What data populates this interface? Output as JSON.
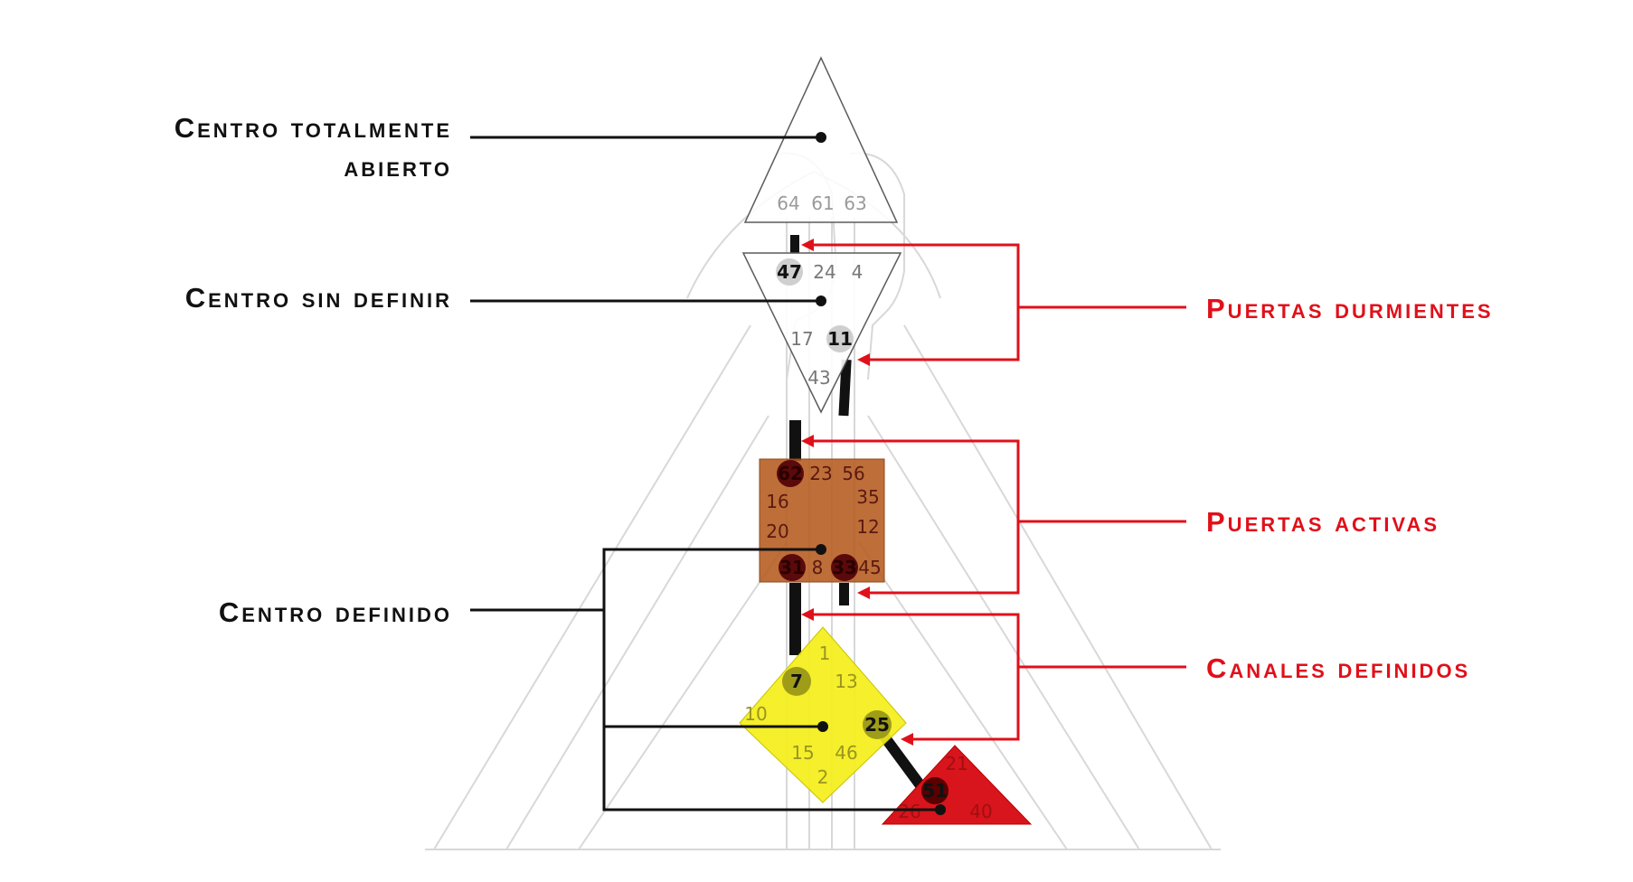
{
  "colors": {
    "black_label": "#111111",
    "red_label": "#e0101a",
    "g_center": "#8a4a1e",
    "g_center_text": "#5a1a10",
    "identity_center": "#f4ee1a",
    "spleen_center": "#d8141c",
    "outline": "#5c5c5c",
    "faint": "#d6d6d6"
  },
  "labels_left": {
    "open_center_line1": "Centro totalmente",
    "open_center_line2": "abierto",
    "undefined_center": "Centro sin definir",
    "defined_center": "Centro definido"
  },
  "labels_right": {
    "dormant_gates": "Puertas durmientes",
    "active_gates": "Puertas activas",
    "defined_channels": "Canales definidos"
  },
  "centers": {
    "head": {
      "gates": [
        "64",
        "61",
        "63"
      ]
    },
    "ajna": {
      "gates": [
        "47",
        "24",
        "4",
        "17",
        "11",
        "43"
      ],
      "highlighted": [
        "47",
        "11"
      ]
    },
    "throat": {
      "gates": [
        "62",
        "23",
        "56",
        "16",
        "35",
        "20",
        "12",
        "31",
        "8",
        "33",
        "45"
      ],
      "highlighted": [
        "62",
        "31",
        "33"
      ]
    },
    "g": {
      "gates": [
        "1",
        "7",
        "13",
        "10",
        "25",
        "15",
        "46",
        "2"
      ],
      "highlighted": [
        "7",
        "25"
      ]
    },
    "spleen": {
      "gates": [
        "51",
        "21",
        "26",
        "40"
      ],
      "highlighted": [
        "51"
      ]
    }
  }
}
